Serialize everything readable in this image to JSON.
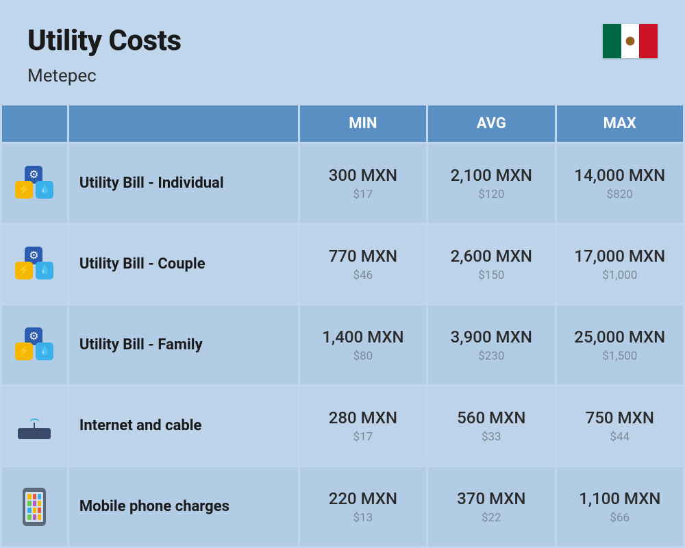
{
  "header": {
    "title": "Utility Costs",
    "subtitle": "Metepec"
  },
  "columns": {
    "min": "MIN",
    "avg": "AVG",
    "max": "MAX"
  },
  "rows": [
    {
      "icon": "utility",
      "name": "Utility Bill - Individual",
      "min_p": "300 MXN",
      "min_s": "$17",
      "avg_p": "2,100 MXN",
      "avg_s": "$120",
      "max_p": "14,000 MXN",
      "max_s": "$820"
    },
    {
      "icon": "utility",
      "name": "Utility Bill - Couple",
      "min_p": "770 MXN",
      "min_s": "$46",
      "avg_p": "2,600 MXN",
      "avg_s": "$150",
      "max_p": "17,000 MXN",
      "max_s": "$1,000"
    },
    {
      "icon": "utility",
      "name": "Utility Bill - Family",
      "min_p": "1,400 MXN",
      "min_s": "$80",
      "avg_p": "3,900 MXN",
      "avg_s": "$230",
      "max_p": "25,000 MXN",
      "max_s": "$1,500"
    },
    {
      "icon": "router",
      "name": "Internet and cable",
      "min_p": "280 MXN",
      "min_s": "$17",
      "avg_p": "560 MXN",
      "avg_s": "$33",
      "max_p": "750 MXN",
      "max_s": "$44"
    },
    {
      "icon": "phone",
      "name": "Mobile phone charges",
      "min_p": "220 MXN",
      "min_s": "$13",
      "avg_p": "370 MXN",
      "avg_s": "$22",
      "max_p": "1,100 MXN",
      "max_s": "$66"
    }
  ],
  "styling": {
    "background_color": "#c0d6ec",
    "header_bg": "#5a8fc4",
    "row_bg_a": "#b3cce5",
    "row_bg_b": "#bdd3e9",
    "title_color": "#1a1a1a",
    "primary_text": "#2a2a2a",
    "secondary_text": "#7a8a9a",
    "title_fontsize": 42,
    "subtitle_fontsize": 26,
    "header_fontsize": 22,
    "name_fontsize": 22,
    "primary_fontsize": 24,
    "secondary_fontsize": 17,
    "flag_colors": {
      "green": "#006847",
      "white": "#ffffff",
      "red": "#ce1126"
    }
  }
}
